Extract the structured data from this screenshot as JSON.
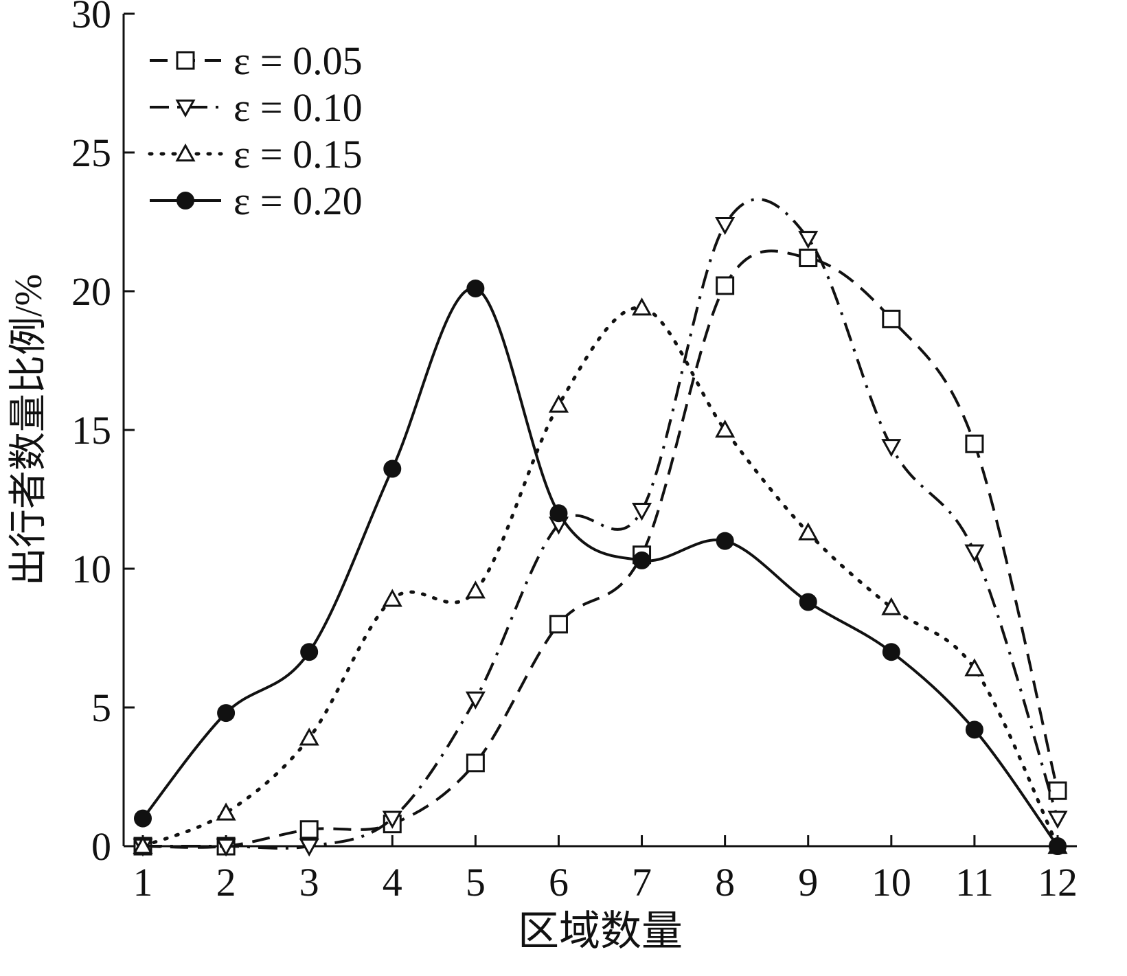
{
  "chart_data": {
    "type": "line",
    "title": "",
    "xlabel": "区域数量",
    "ylabel": "出行者数量比例/%",
    "x": [
      1,
      2,
      3,
      4,
      5,
      6,
      7,
      8,
      9,
      10,
      11,
      12
    ],
    "xlim": [
      1,
      12
    ],
    "ylim": [
      0,
      30
    ],
    "xticks": [
      1,
      2,
      3,
      4,
      5,
      6,
      7,
      8,
      9,
      10,
      11,
      12
    ],
    "yticks": [
      0,
      5,
      10,
      15,
      20,
      25,
      30
    ],
    "grid": false,
    "legend_position": "top-left",
    "series": [
      {
        "name": "ε = 0.05",
        "marker": "square",
        "line_style": "dashed",
        "values": [
          0,
          0,
          0.6,
          0.8,
          3.0,
          8.0,
          10.5,
          20.2,
          21.2,
          19.0,
          14.5,
          2.0
        ]
      },
      {
        "name": "ε = 0.10",
        "marker": "triangle-down",
        "line_style": "dash-dot",
        "values": [
          0,
          0,
          0,
          1.0,
          5.3,
          11.6,
          12.1,
          22.4,
          21.9,
          14.4,
          10.6,
          1.0
        ]
      },
      {
        "name": "ε = 0.15",
        "marker": "triangle-up",
        "line_style": "dotted",
        "values": [
          0,
          1.2,
          3.9,
          8.9,
          9.2,
          15.9,
          19.4,
          15.0,
          11.3,
          8.6,
          6.4,
          0
        ]
      },
      {
        "name": "ε = 0.20",
        "marker": "circle-filled",
        "line_style": "solid",
        "values": [
          1.0,
          4.8,
          7.0,
          13.6,
          20.1,
          12.0,
          10.3,
          11.0,
          8.8,
          7.0,
          4.2,
          0
        ]
      }
    ]
  }
}
